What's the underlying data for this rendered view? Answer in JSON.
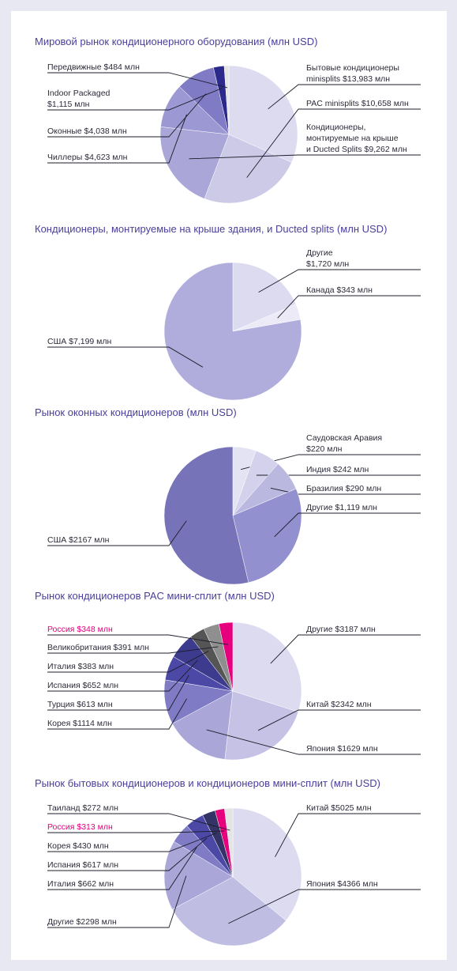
{
  "chart_data": [
    {
      "type": "pie",
      "title": "Мировой рынок кондиционерного оборудования (млн USD)",
      "slices": [
        {
          "label": [
            "Бытовые кондиционеры",
            "minisplits $13,983 млн"
          ],
          "value": 13983,
          "color": "#dcdbef",
          "side": "right"
        },
        {
          "label": [
            "PAC minisplits $10,658 млн"
          ],
          "value": 10658,
          "color": "#cccae6",
          "side": "right"
        },
        {
          "label": [
            "Кондиционеры,",
            "монтируемые на крыше",
            "и Ducted Splits $9,262 млн"
          ],
          "value": 9262,
          "color": "#aaa6d8",
          "side": "right"
        },
        {
          "label": [
            "Чиллеры $4,623 млн"
          ],
          "value": 4623,
          "color": "#9c98d3",
          "side": "left"
        },
        {
          "label": [
            "Оконные $4,038 млн"
          ],
          "value": 4038,
          "color": "#7f7bc4",
          "side": "left"
        },
        {
          "label": [
            "Indoor Packaged",
            "$1,115 млн"
          ],
          "value": 1115,
          "color": "#2b2a8c",
          "side": "left"
        },
        {
          "label": [
            "Передвижные $484 млн"
          ],
          "value": 484,
          "color": "#e4e4e4",
          "side": "left"
        }
      ]
    },
    {
      "type": "pie",
      "title": "Кондиционеры, монтируемые на крыше здания, и Ducted splits (млн USD)",
      "slices": [
        {
          "label": [
            "Другие",
            "$1,720 млн"
          ],
          "value": 1720,
          "color": "#dcdbef",
          "side": "right"
        },
        {
          "label": [
            "Канада $343 млн"
          ],
          "value": 343,
          "color": "#ebeaf6",
          "side": "right"
        },
        {
          "label": [
            "США $7,199 млн"
          ],
          "value": 7199,
          "color": "#b0acdb",
          "side": "left"
        }
      ]
    },
    {
      "type": "pie",
      "title": "Рынок оконных кондиционеров (млн USD)",
      "slices": [
        {
          "label": [
            "Саудовская Аравия",
            "$220 млн"
          ],
          "value": 220,
          "color": "#e4e3f3",
          "side": "right"
        },
        {
          "label": [
            "Индия $242 млн"
          ],
          "value": 242,
          "color": "#d3d1ec",
          "side": "right"
        },
        {
          "label": [
            "Бразилия $290 млн"
          ],
          "value": 290,
          "color": "#bbb8e0",
          "side": "right"
        },
        {
          "label": [
            "Другие $1,119 млн"
          ],
          "value": 1119,
          "color": "#9390cf",
          "side": "right"
        },
        {
          "label": [
            "США $2167 млн"
          ],
          "value": 2167,
          "color": "#7773b8",
          "side": "left"
        }
      ]
    },
    {
      "type": "pie",
      "title": "Рынок кондиционеров PAC мини-сплит (млн USD)",
      "slices": [
        {
          "label": [
            "Другие $3187 млн"
          ],
          "value": 3187,
          "color": "#dcdbef",
          "side": "right"
        },
        {
          "label": [
            "Китай $2342 млн"
          ],
          "value": 2342,
          "color": "#c5c2e5",
          "side": "right"
        },
        {
          "label": [
            "Япония $1629 млн"
          ],
          "value": 1629,
          "color": "#aaa6d8",
          "side": "right"
        },
        {
          "label": [
            "Корея $1114 млн"
          ],
          "value": 1114,
          "color": "#7f7bc4",
          "side": "left"
        },
        {
          "label": [
            "Турция $613 млн"
          ],
          "value": 613,
          "color": "#4c49a6",
          "side": "left"
        },
        {
          "label": [
            "Испания $652 млн"
          ],
          "value": 652,
          "color": "#3d3b8e",
          "side": "left"
        },
        {
          "label": [
            "Италия $383 млн"
          ],
          "value": 383,
          "color": "#555555",
          "side": "left"
        },
        {
          "label": [
            "Великобритания $391 млн"
          ],
          "value": 391,
          "color": "#8f8f8f",
          "side": "left"
        },
        {
          "label": [
            "Россия $348 млн"
          ],
          "value": 348,
          "color": "#e6007e",
          "side": "left",
          "highlight": true
        }
      ]
    },
    {
      "type": "pie",
      "title": "Рынок бытовых кондиционеров и кондиционеров мини-сплит (млн USD)",
      "slices": [
        {
          "label": [
            "Китай $5025 млн"
          ],
          "value": 5025,
          "color": "#dcdbef",
          "side": "right"
        },
        {
          "label": [
            "Япония $4366 млн"
          ],
          "value": 4366,
          "color": "#c0bde3",
          "side": "right"
        },
        {
          "label": [
            "Другие $2298 млн"
          ],
          "value": 2298,
          "color": "#aaa6d8",
          "side": "left"
        },
        {
          "label": [
            "Италия $662 млн"
          ],
          "value": 662,
          "color": "#7f7bc4",
          "side": "left"
        },
        {
          "label": [
            "Испания $617 млн"
          ],
          "value": 617,
          "color": "#4c49a6",
          "side": "left"
        },
        {
          "label": [
            "Корея $430 млн"
          ],
          "value": 430,
          "color": "#333366",
          "side": "left"
        },
        {
          "label": [
            "Россия $313 млн"
          ],
          "value": 313,
          "color": "#e6007e",
          "side": "left",
          "highlight": true
        },
        {
          "label": [
            "Таиланд $272 млн"
          ],
          "value": 272,
          "color": "#e4e4e4",
          "side": "left"
        }
      ]
    }
  ]
}
